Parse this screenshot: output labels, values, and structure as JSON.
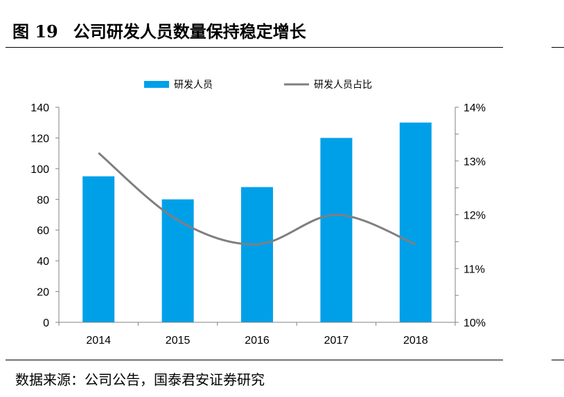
{
  "figure": {
    "label": "图 19",
    "title": "公司研发人员数量保持稳定增长",
    "source": "数据来源：公司公告，国泰君安证券研究"
  },
  "chart_data": {
    "type": "bar",
    "categories": [
      "2014",
      "2015",
      "2016",
      "2017",
      "2018"
    ],
    "series": [
      {
        "name": "研发人员",
        "kind": "bar",
        "axis": "left",
        "color": "#00a0e9",
        "values": [
          95,
          80,
          88,
          120,
          130
        ]
      },
      {
        "name": "研发人员占比",
        "kind": "line",
        "axis": "right",
        "color": "#7f7f7f",
        "values": [
          13.15,
          11.9,
          11.45,
          12.0,
          11.45
        ]
      }
    ],
    "y_left": {
      "min": 0,
      "max": 140,
      "ticks": [
        0,
        20,
        40,
        60,
        80,
        100,
        120,
        140
      ],
      "tick_labels": [
        "0",
        "20",
        "40",
        "60",
        "80",
        "100",
        "120",
        "140"
      ]
    },
    "y_right": {
      "min": 10,
      "max": 14,
      "ticks": [
        10,
        10.5,
        11,
        11.5,
        12,
        12.5,
        13,
        13.5,
        14
      ],
      "tick_labels": [
        "10%",
        "11%",
        "11%",
        "12%",
        "12%",
        "13%",
        "13%",
        "14%",
        "14%"
      ]
    },
    "legend_position": "top-center",
    "grid": false
  }
}
